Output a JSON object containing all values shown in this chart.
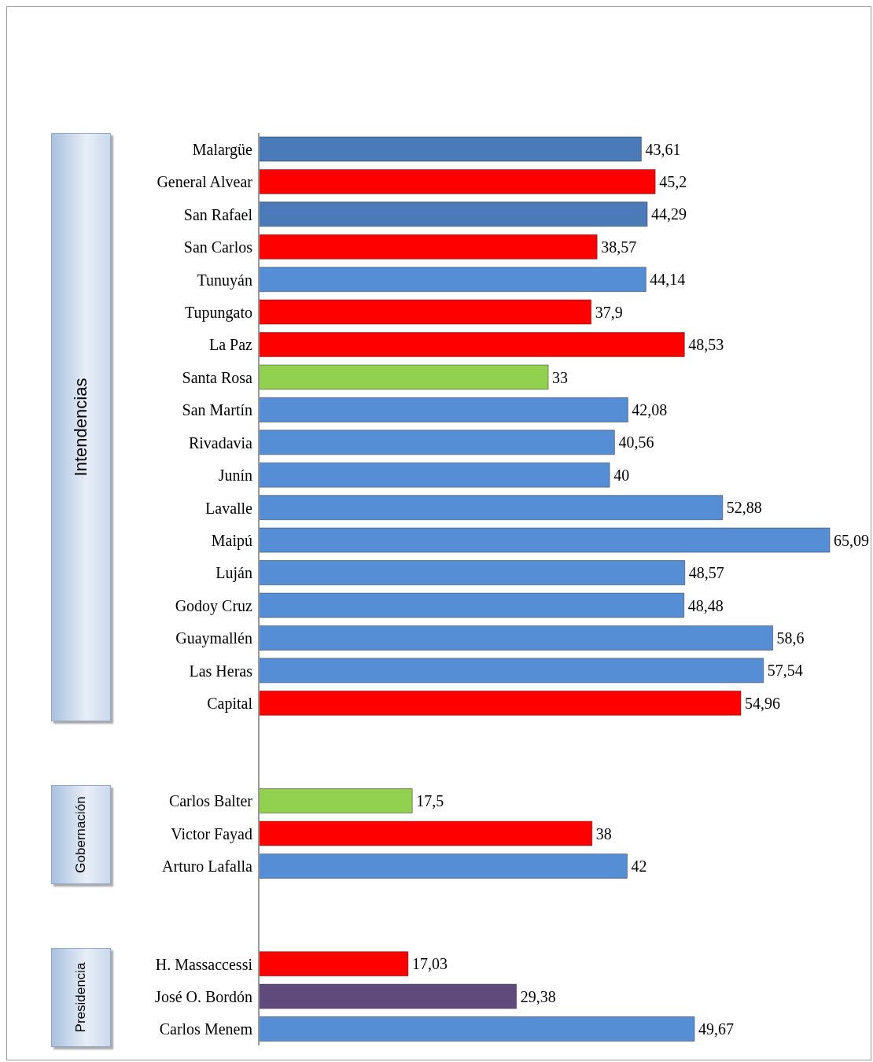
{
  "chart_data": {
    "type": "bar",
    "orientation": "horizontal",
    "value_labels": [
      "43,61",
      "45,2",
      "44,29",
      "38,57",
      "44,14",
      "37,9",
      "48,53",
      "33",
      "42,08",
      "40,56",
      "40",
      "52,88",
      "65,09",
      "48,57",
      "48,48",
      "58,6",
      "57,54",
      "54,96",
      null,
      null,
      "17,5",
      "38",
      "42",
      null,
      null,
      "17,03",
      "29,38",
      "49,67"
    ],
    "categories": [
      "Malargüe",
      "General Alvear",
      "San Rafael",
      "San Carlos",
      "Tunuyán",
      "Tupungato",
      "La Paz",
      "Santa Rosa",
      "San Martín",
      "Rivadavia",
      "Junín",
      "Lavalle",
      "Maipú",
      "Luján",
      "Godoy Cruz",
      "Guaymallén",
      "Las Heras",
      "Capital",
      null,
      null,
      "Carlos Balter",
      "Victor Fayad",
      "Arturo Lafalla",
      null,
      null,
      "H. Massaccessi",
      "José O. Bordón",
      "Carlos Menem"
    ],
    "values": [
      43.61,
      45.2,
      44.29,
      38.57,
      44.14,
      37.9,
      48.53,
      33,
      42.08,
      40.56,
      40,
      52.88,
      65.09,
      48.57,
      48.48,
      58.6,
      57.54,
      54.96,
      null,
      null,
      17.5,
      38,
      42,
      null,
      null,
      17.03,
      29.38,
      49.67
    ],
    "colors": [
      "#4a7ab8",
      "#ff0000",
      "#4a7ab8",
      "#ff0000",
      "#558ed5",
      "#ff0000",
      "#ff0000",
      "#92d050",
      "#558ed5",
      "#558ed5",
      "#558ed5",
      "#558ed5",
      "#558ed5",
      "#558ed5",
      "#558ed5",
      "#558ed5",
      "#558ed5",
      "#ff0000",
      null,
      null,
      "#92d050",
      "#ff0000",
      "#558ed5",
      null,
      null,
      "#ff0000",
      "#604a7b",
      "#558ed5"
    ],
    "annotations": [
      "Intendencias",
      "Gobernación",
      "Presidencia"
    ]
  }
}
